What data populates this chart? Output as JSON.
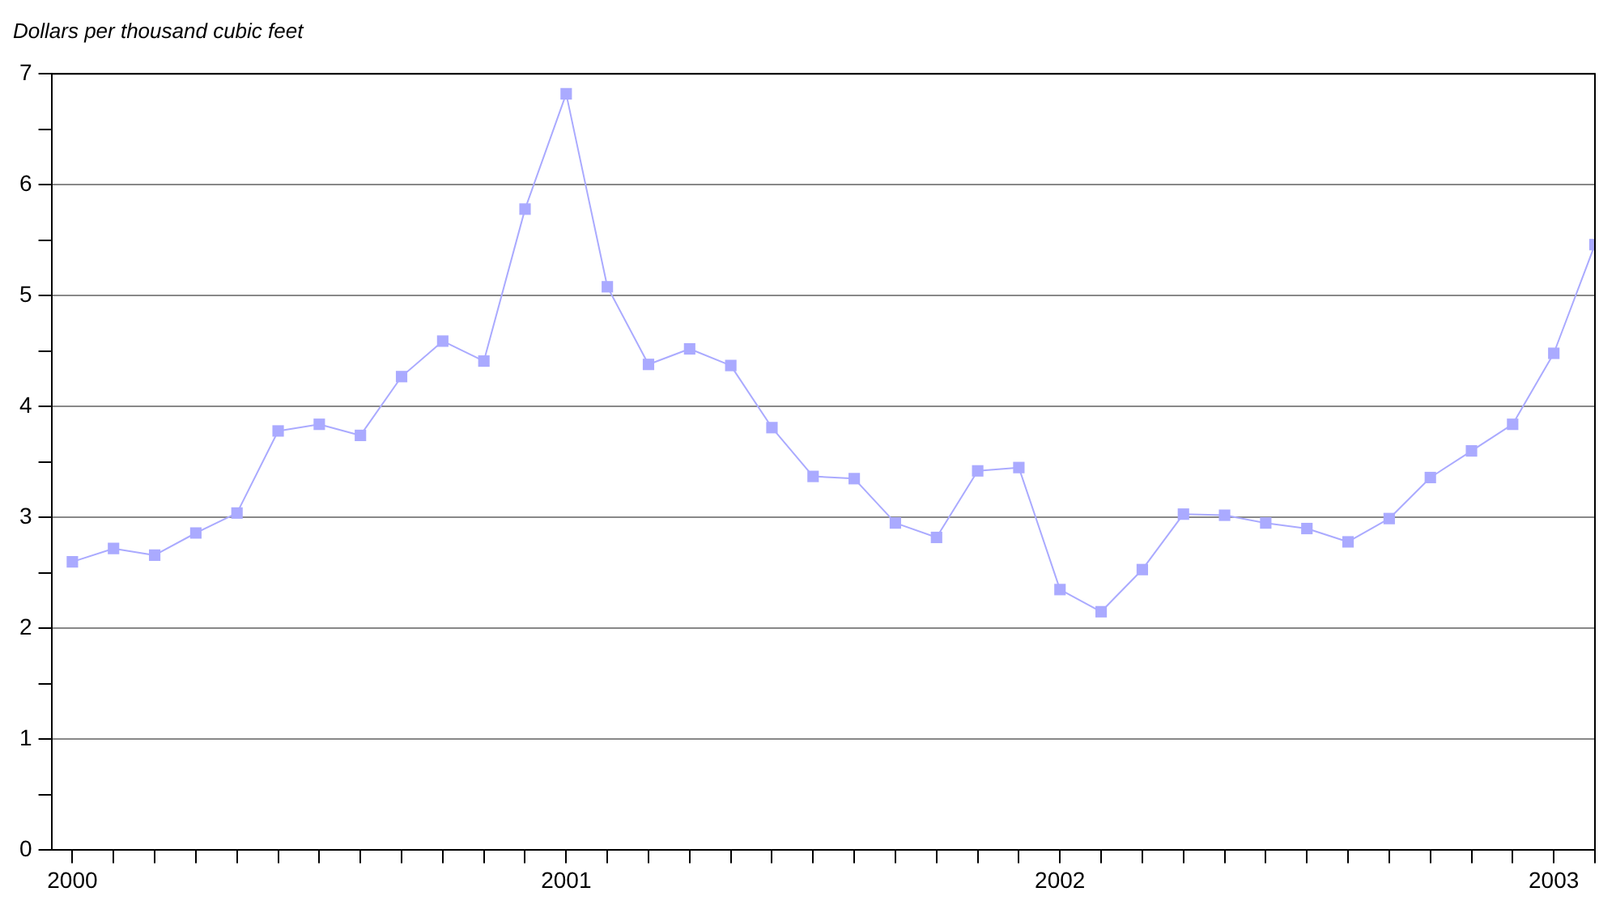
{
  "chart_data": {
    "type": "line",
    "ylabel": "Dollars per thousand cubic feet",
    "x": [
      "2000-01",
      "2000-02",
      "2000-03",
      "2000-04",
      "2000-05",
      "2000-06",
      "2000-07",
      "2000-08",
      "2000-09",
      "2000-10",
      "2000-11",
      "2000-12",
      "2001-01",
      "2001-02",
      "2001-03",
      "2001-04",
      "2001-05",
      "2001-06",
      "2001-07",
      "2001-08",
      "2001-09",
      "2001-10",
      "2001-11",
      "2001-12",
      "2002-01",
      "2002-02",
      "2002-03",
      "2002-04",
      "2002-05",
      "2002-06",
      "2002-07",
      "2002-08",
      "2002-09",
      "2002-10",
      "2002-11",
      "2002-12",
      "2003-01",
      "2003-02"
    ],
    "series": [
      {
        "color": "#aaaaff",
        "values": [
          2.6,
          2.72,
          2.66,
          2.86,
          3.04,
          3.78,
          3.84,
          3.74,
          4.27,
          4.59,
          4.41,
          5.78,
          6.82,
          5.08,
          4.38,
          4.52,
          4.37,
          3.81,
          3.37,
          3.35,
          2.95,
          2.82,
          3.42,
          3.45,
          2.35,
          2.15,
          2.53,
          3.03,
          3.02,
          2.95,
          2.9,
          2.78,
          2.99,
          3.36,
          3.6,
          3.84,
          4.48,
          5.46
        ]
      }
    ],
    "xlim": [
      "1999-12-16",
      "2003-02"
    ],
    "xticks": [
      {
        "value": "2000",
        "label": "2000"
      },
      {
        "value": "2000-02",
        "label": null
      },
      {
        "value": "2000-03",
        "label": null
      },
      {
        "value": "2000-04",
        "label": null
      },
      {
        "value": "2000-05",
        "label": null
      },
      {
        "value": "2000-06",
        "label": null
      },
      {
        "value": "2000-07",
        "label": null
      },
      {
        "value": "2000-08",
        "label": null
      },
      {
        "value": "2000-09",
        "label": null
      },
      {
        "value": "2000-10",
        "label": null
      },
      {
        "value": "2000-11",
        "label": null
      },
      {
        "value": "2000-12",
        "label": null
      },
      {
        "value": "2001",
        "label": "2001"
      },
      {
        "value": "2001-02",
        "label": null
      },
      {
        "value": "2001-03",
        "label": null
      },
      {
        "value": "2001-04",
        "label": null
      },
      {
        "value": "2001-05",
        "label": null
      },
      {
        "value": "2001-06",
        "label": null
      },
      {
        "value": "2001-07",
        "label": null
      },
      {
        "value": "2001-08",
        "label": null
      },
      {
        "value": "2001-09",
        "label": null
      },
      {
        "value": "2001-10",
        "label": null
      },
      {
        "value": "2001-11",
        "label": null
      },
      {
        "value": "2001-12",
        "label": null
      },
      {
        "value": "2002",
        "label": "2002"
      },
      {
        "value": "2002-02",
        "label": null
      },
      {
        "value": "2002-03",
        "label": null
      },
      {
        "value": "2002-04",
        "label": null
      },
      {
        "value": "2002-05",
        "label": null
      },
      {
        "value": "2002-06",
        "label": null
      },
      {
        "value": "2002-07",
        "label": null
      },
      {
        "value": "2002-08",
        "label": null
      },
      {
        "value": "2002-09",
        "label": null
      },
      {
        "value": "2002-10",
        "label": null
      },
      {
        "value": "2002-11",
        "label": null
      },
      {
        "value": "2002-12",
        "label": null
      },
      {
        "value": "2003",
        "label": "2003"
      },
      {
        "value": "2003-02",
        "label": null
      }
    ],
    "ylim": [
      0,
      7
    ],
    "yticks": [
      0,
      {
        "value": 0.5,
        "label": null
      },
      1,
      {
        "value": 1.5,
        "label": null
      },
      2,
      {
        "value": 2.5,
        "label": null
      },
      3,
      {
        "value": 3.5,
        "label": null
      },
      4,
      {
        "value": 4.5,
        "label": null
      },
      5,
      {
        "value": 5.5,
        "label": null
      },
      6,
      {
        "value": 6.5,
        "label": null
      },
      7
    ],
    "grid": "y",
    "marker": "square",
    "line_style": "solid",
    "legend": false
  }
}
